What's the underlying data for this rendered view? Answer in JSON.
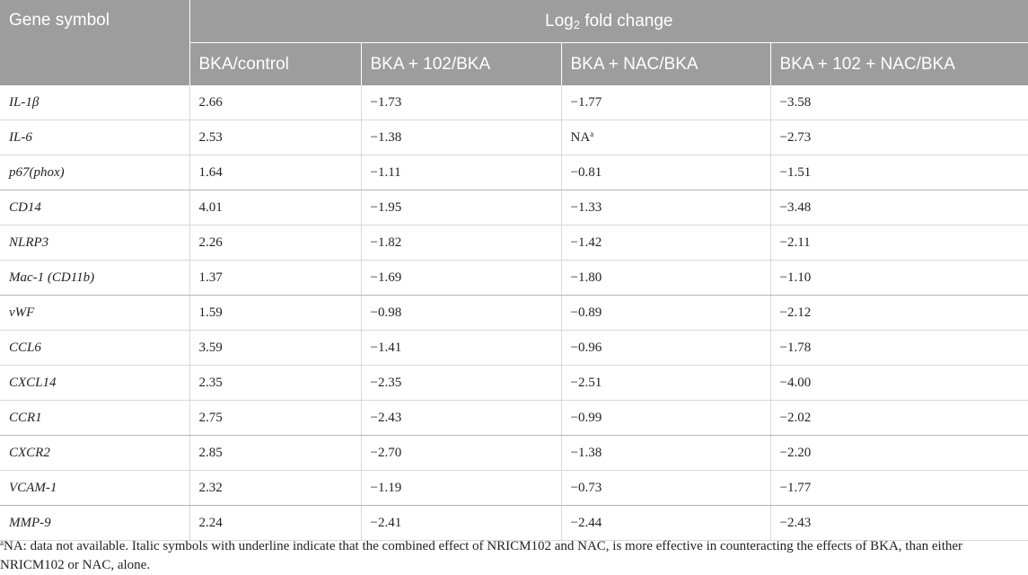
{
  "table": {
    "header": {
      "gene_symbol": "Gene symbol",
      "group_prefix": "Log",
      "group_sub": "2",
      "group_suffix": " fold change",
      "columns": [
        "BKA/control",
        "BKA + 102/BKA",
        "BKA + NAC/BKA",
        "BKA + 102 + NAC/BKA"
      ]
    },
    "rows": [
      {
        "gene": "IL-1β",
        "v1": "2.66",
        "v2": "−1.73",
        "v3": "−1.77",
        "v4": "−3.58"
      },
      {
        "gene": "IL-6",
        "v1": "2.53",
        "v2": "−1.38",
        "v3": "NA",
        "v3_sup": "a",
        "v4": "−2.73"
      },
      {
        "gene": "p67(phox)",
        "v1": "1.64",
        "v2": "−1.11",
        "v3": "−0.81",
        "v4": "−1.51"
      },
      {
        "gene": "CD14",
        "v1": "4.01",
        "v2": "−1.95",
        "v3": "−1.33",
        "v4": "−3.48"
      },
      {
        "gene": "NLRP3",
        "v1": "2.26",
        "v2": "−1.82",
        "v3": "−1.42",
        "v4": "−2.11"
      },
      {
        "gene": "Mac-1 (CD11b)",
        "v1": "1.37",
        "v2": "−1.69",
        "v3": "−1.80",
        "v4": "−1.10"
      },
      {
        "gene": "vWF",
        "v1": "1.59",
        "v2": "−0.98",
        "v3": "−0.89",
        "v4": "−2.12"
      },
      {
        "gene": "CCL6",
        "v1": "3.59",
        "v2": "−1.41",
        "v3": "−0.96",
        "v4": "−1.78"
      },
      {
        "gene": "CXCL14",
        "v1": "2.35",
        "v2": "−2.35",
        "v3": "−2.51",
        "v4": "−4.00"
      },
      {
        "gene": "CCR1",
        "v1": "2.75",
        "v2": "−2.43",
        "v3": "−0.99",
        "v4": "−2.02"
      },
      {
        "gene": "CXCR2",
        "v1": "2.85",
        "v2": "−2.70",
        "v3": "−1.38",
        "v4": "−2.20"
      },
      {
        "gene": "VCAM-1",
        "v1": "2.32",
        "v2": "−1.19",
        "v3": "−0.73",
        "v4": "−1.77"
      },
      {
        "gene": "MMP-9",
        "v1": "2.24",
        "v2": "−2.41",
        "v3": "−2.44",
        "v4": "−2.43"
      }
    ]
  },
  "footnote": {
    "marker": "a",
    "text": "NA: data not available. Italic symbols with underline indicate that the combined effect of NRICM102 and NAC, is more effective in counteracting the effects of BKA, than either NRICM102 or NAC, alone."
  }
}
